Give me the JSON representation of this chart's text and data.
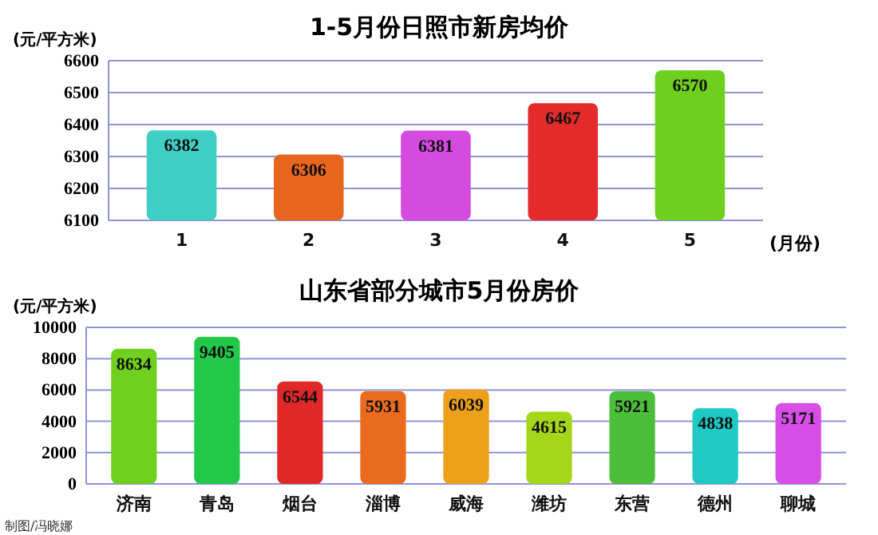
{
  "chart_data": [
    {
      "type": "bar",
      "title": "1-5月份日照市新房均价",
      "ylabel": "(元/平方米)",
      "xlabel": "(月份)",
      "categories": [
        "1",
        "2",
        "3",
        "4",
        "5"
      ],
      "values": [
        6382,
        6306,
        6381,
        6467,
        6570
      ],
      "colors": [
        "#3fcfc4",
        "#e8651e",
        "#d54be0",
        "#e32b2b",
        "#6fcf1e"
      ],
      "ylim": [
        6100,
        6600
      ],
      "yticks": [
        6100,
        6200,
        6300,
        6400,
        6500,
        6600
      ],
      "grid": "y",
      "data_labels": true
    },
    {
      "type": "bar",
      "title": "山东省部分城市5月份房价",
      "ylabel": "(元/平方米)",
      "categories": [
        "济南",
        "青岛",
        "烟台",
        "淄博",
        "威海",
        "潍坊",
        "东营",
        "德州",
        "聊城"
      ],
      "values": [
        8634,
        9405,
        6544,
        5931,
        6039,
        4615,
        5921,
        4838,
        5171
      ],
      "colors": [
        "#6fd11e",
        "#22c84a",
        "#e02828",
        "#ea6a1e",
        "#eda01a",
        "#a6d61a",
        "#4cbf3a",
        "#1fc9c4",
        "#d64ee6"
      ],
      "ylim": [
        0,
        10000
      ],
      "yticks": [
        0,
        2000,
        4000,
        6000,
        8000,
        10000
      ],
      "grid": "y",
      "data_labels": true,
      "annotations": [
        "制图/冯晓娜"
      ]
    }
  ]
}
